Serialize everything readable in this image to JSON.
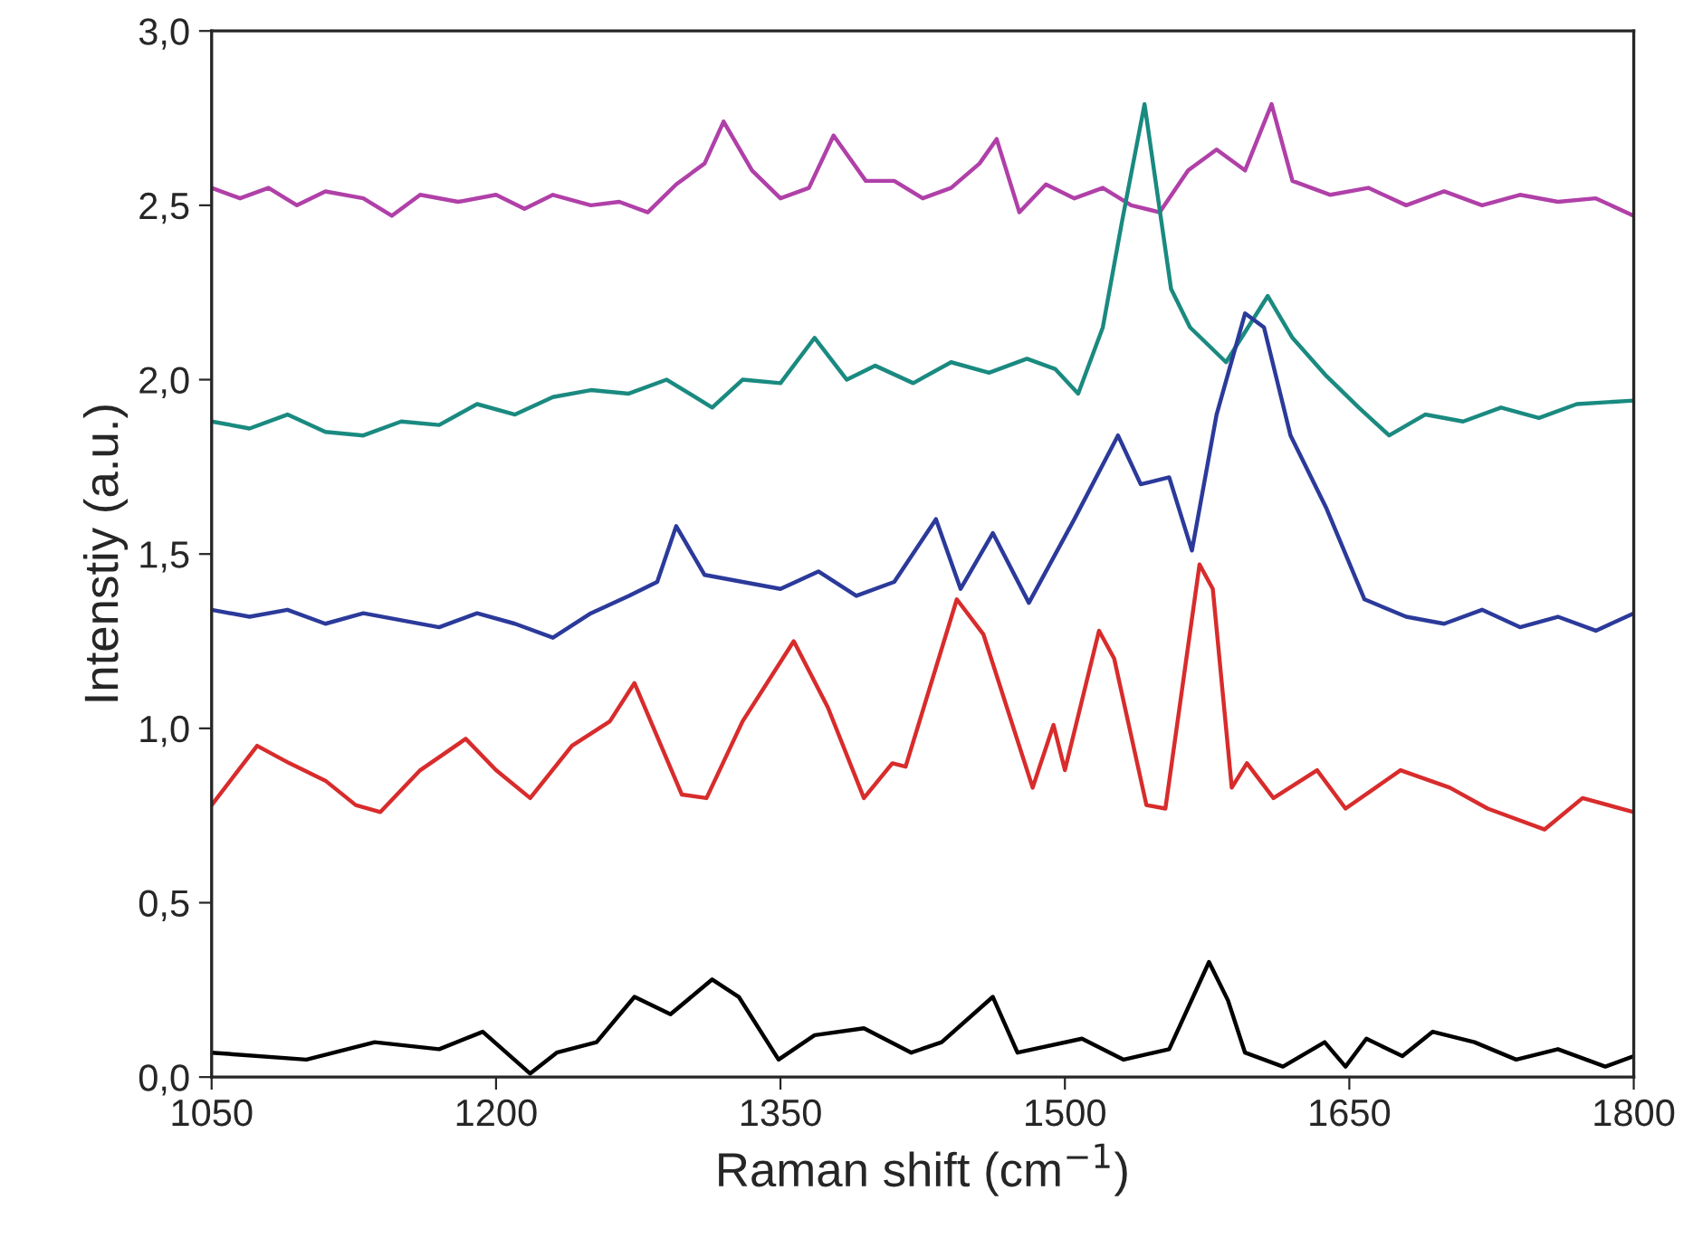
{
  "chart_data": {
    "type": "line",
    "xlabel": "Raman shift (cm$^{−1}$)",
    "ylabel": "Intenstiy (a.u.)",
    "xlim": [
      1050,
      1800
    ],
    "xticks": [
      1050,
      1200,
      1350,
      1500,
      1650,
      1800
    ],
    "ylim": [
      0,
      3
    ],
    "yticks": [
      {
        "value": 0,
        "label": "0,0"
      },
      {
        "value": 0.5,
        "label": "0,5"
      },
      {
        "value": 1,
        "label": "1,0"
      },
      {
        "value": 1.5,
        "label": "1,5"
      },
      {
        "value": 2,
        "label": "2,0"
      },
      {
        "value": 2.5,
        "label": "2,5"
      },
      {
        "value": 3,
        "label": "3,0"
      }
    ],
    "grid": false,
    "line_style": "solid",
    "marker": "none",
    "series": [
      {
        "color": "#b040a8",
        "x": [
          1050,
          1065,
          1080,
          1095,
          1110,
          1130,
          1145,
          1160,
          1180,
          1200,
          1215,
          1230,
          1250,
          1265,
          1280,
          1295,
          1310,
          1320,
          1335,
          1350,
          1365,
          1378,
          1395,
          1410,
          1425,
          1440,
          1455,
          1464,
          1476,
          1490,
          1505,
          1520,
          1535,
          1550,
          1565,
          1580,
          1595,
          1609,
          1620,
          1640,
          1660,
          1680,
          1700,
          1720,
          1740,
          1760,
          1780,
          1800
        ],
        "values": [
          2.55,
          2.52,
          2.55,
          2.5,
          2.54,
          2.52,
          2.47,
          2.53,
          2.51,
          2.53,
          2.49,
          2.53,
          2.5,
          2.51,
          2.48,
          2.56,
          2.62,
          2.74,
          2.6,
          2.52,
          2.55,
          2.7,
          2.57,
          2.57,
          2.52,
          2.55,
          2.62,
          2.69,
          2.48,
          2.56,
          2.52,
          2.55,
          2.5,
          2.48,
          2.6,
          2.66,
          2.6,
          2.79,
          2.57,
          2.53,
          2.55,
          2.5,
          2.54,
          2.5,
          2.53,
          2.51,
          2.52,
          2.47
        ]
      },
      {
        "color": "#1a8a80",
        "x": [
          1050,
          1070,
          1090,
          1110,
          1130,
          1150,
          1170,
          1190,
          1210,
          1230,
          1250,
          1270,
          1290,
          1314,
          1330,
          1350,
          1368,
          1385,
          1400,
          1420,
          1440,
          1460,
          1480,
          1495,
          1507,
          1520,
          1530,
          1542,
          1556,
          1566,
          1585,
          1607,
          1620,
          1638,
          1655,
          1671,
          1690,
          1710,
          1730,
          1750,
          1770,
          1800
        ],
        "values": [
          1.88,
          1.86,
          1.9,
          1.85,
          1.84,
          1.88,
          1.87,
          1.93,
          1.9,
          1.95,
          1.97,
          1.96,
          2.0,
          1.92,
          2.0,
          1.99,
          2.12,
          2.0,
          2.04,
          1.99,
          2.05,
          2.02,
          2.06,
          2.03,
          1.96,
          2.15,
          2.45,
          2.79,
          2.26,
          2.15,
          2.05,
          2.24,
          2.12,
          2.01,
          1.92,
          1.84,
          1.9,
          1.88,
          1.92,
          1.89,
          1.93,
          1.94
        ]
      },
      {
        "color": "#2b3a9a",
        "x": [
          1050,
          1070,
          1090,
          1110,
          1130,
          1150,
          1170,
          1190,
          1210,
          1230,
          1250,
          1270,
          1285,
          1295,
          1310,
          1330,
          1350,
          1370,
          1390,
          1410,
          1432,
          1445,
          1462,
          1481,
          1505,
          1528,
          1540,
          1555,
          1567,
          1580,
          1595,
          1605,
          1619,
          1638,
          1658,
          1680,
          1700,
          1720,
          1740,
          1760,
          1780,
          1800
        ],
        "values": [
          1.34,
          1.32,
          1.34,
          1.3,
          1.33,
          1.31,
          1.29,
          1.33,
          1.3,
          1.26,
          1.33,
          1.38,
          1.42,
          1.58,
          1.44,
          1.42,
          1.4,
          1.45,
          1.38,
          1.42,
          1.6,
          1.4,
          1.56,
          1.36,
          1.6,
          1.84,
          1.7,
          1.72,
          1.51,
          1.9,
          2.19,
          2.15,
          1.84,
          1.63,
          1.37,
          1.32,
          1.3,
          1.34,
          1.29,
          1.32,
          1.28,
          1.33
        ]
      },
      {
        "color": "#d82c2c",
        "x": [
          1050,
          1074,
          1091,
          1110,
          1126,
          1139,
          1160,
          1184,
          1200,
          1218,
          1240,
          1260,
          1273,
          1298,
          1311,
          1330,
          1357,
          1375,
          1394,
          1409,
          1416,
          1443,
          1457,
          1483,
          1494,
          1500,
          1518,
          1526,
          1543,
          1553,
          1571,
          1578,
          1588,
          1596,
          1610,
          1633,
          1648,
          1677,
          1703,
          1723,
          1753,
          1773,
          1800
        ],
        "values": [
          0.78,
          0.95,
          0.9,
          0.85,
          0.78,
          0.76,
          0.88,
          0.97,
          0.88,
          0.8,
          0.95,
          1.02,
          1.13,
          0.81,
          0.8,
          1.02,
          1.25,
          1.06,
          0.8,
          0.9,
          0.89,
          1.37,
          1.27,
          0.83,
          1.01,
          0.88,
          1.28,
          1.2,
          0.78,
          0.77,
          1.47,
          1.4,
          0.83,
          0.9,
          0.8,
          0.88,
          0.77,
          0.88,
          0.83,
          0.77,
          0.71,
          0.8,
          0.76
        ]
      },
      {
        "color": "#000000",
        "x": [
          1050,
          1100,
          1136,
          1170,
          1193,
          1218,
          1232,
          1253,
          1273,
          1292,
          1314,
          1328,
          1349,
          1368,
          1394,
          1419,
          1435,
          1462,
          1475,
          1509,
          1531,
          1555,
          1576,
          1586,
          1595,
          1615,
          1637,
          1648,
          1659,
          1678,
          1694,
          1716,
          1738,
          1760,
          1785,
          1800
        ],
        "values": [
          0.07,
          0.05,
          0.1,
          0.08,
          0.13,
          0.01,
          0.07,
          0.1,
          0.23,
          0.18,
          0.28,
          0.23,
          0.05,
          0.12,
          0.14,
          0.07,
          0.1,
          0.23,
          0.07,
          0.11,
          0.05,
          0.08,
          0.33,
          0.22,
          0.07,
          0.03,
          0.1,
          0.03,
          0.11,
          0.06,
          0.13,
          0.1,
          0.05,
          0.08,
          0.03,
          0.06
        ]
      }
    ]
  }
}
